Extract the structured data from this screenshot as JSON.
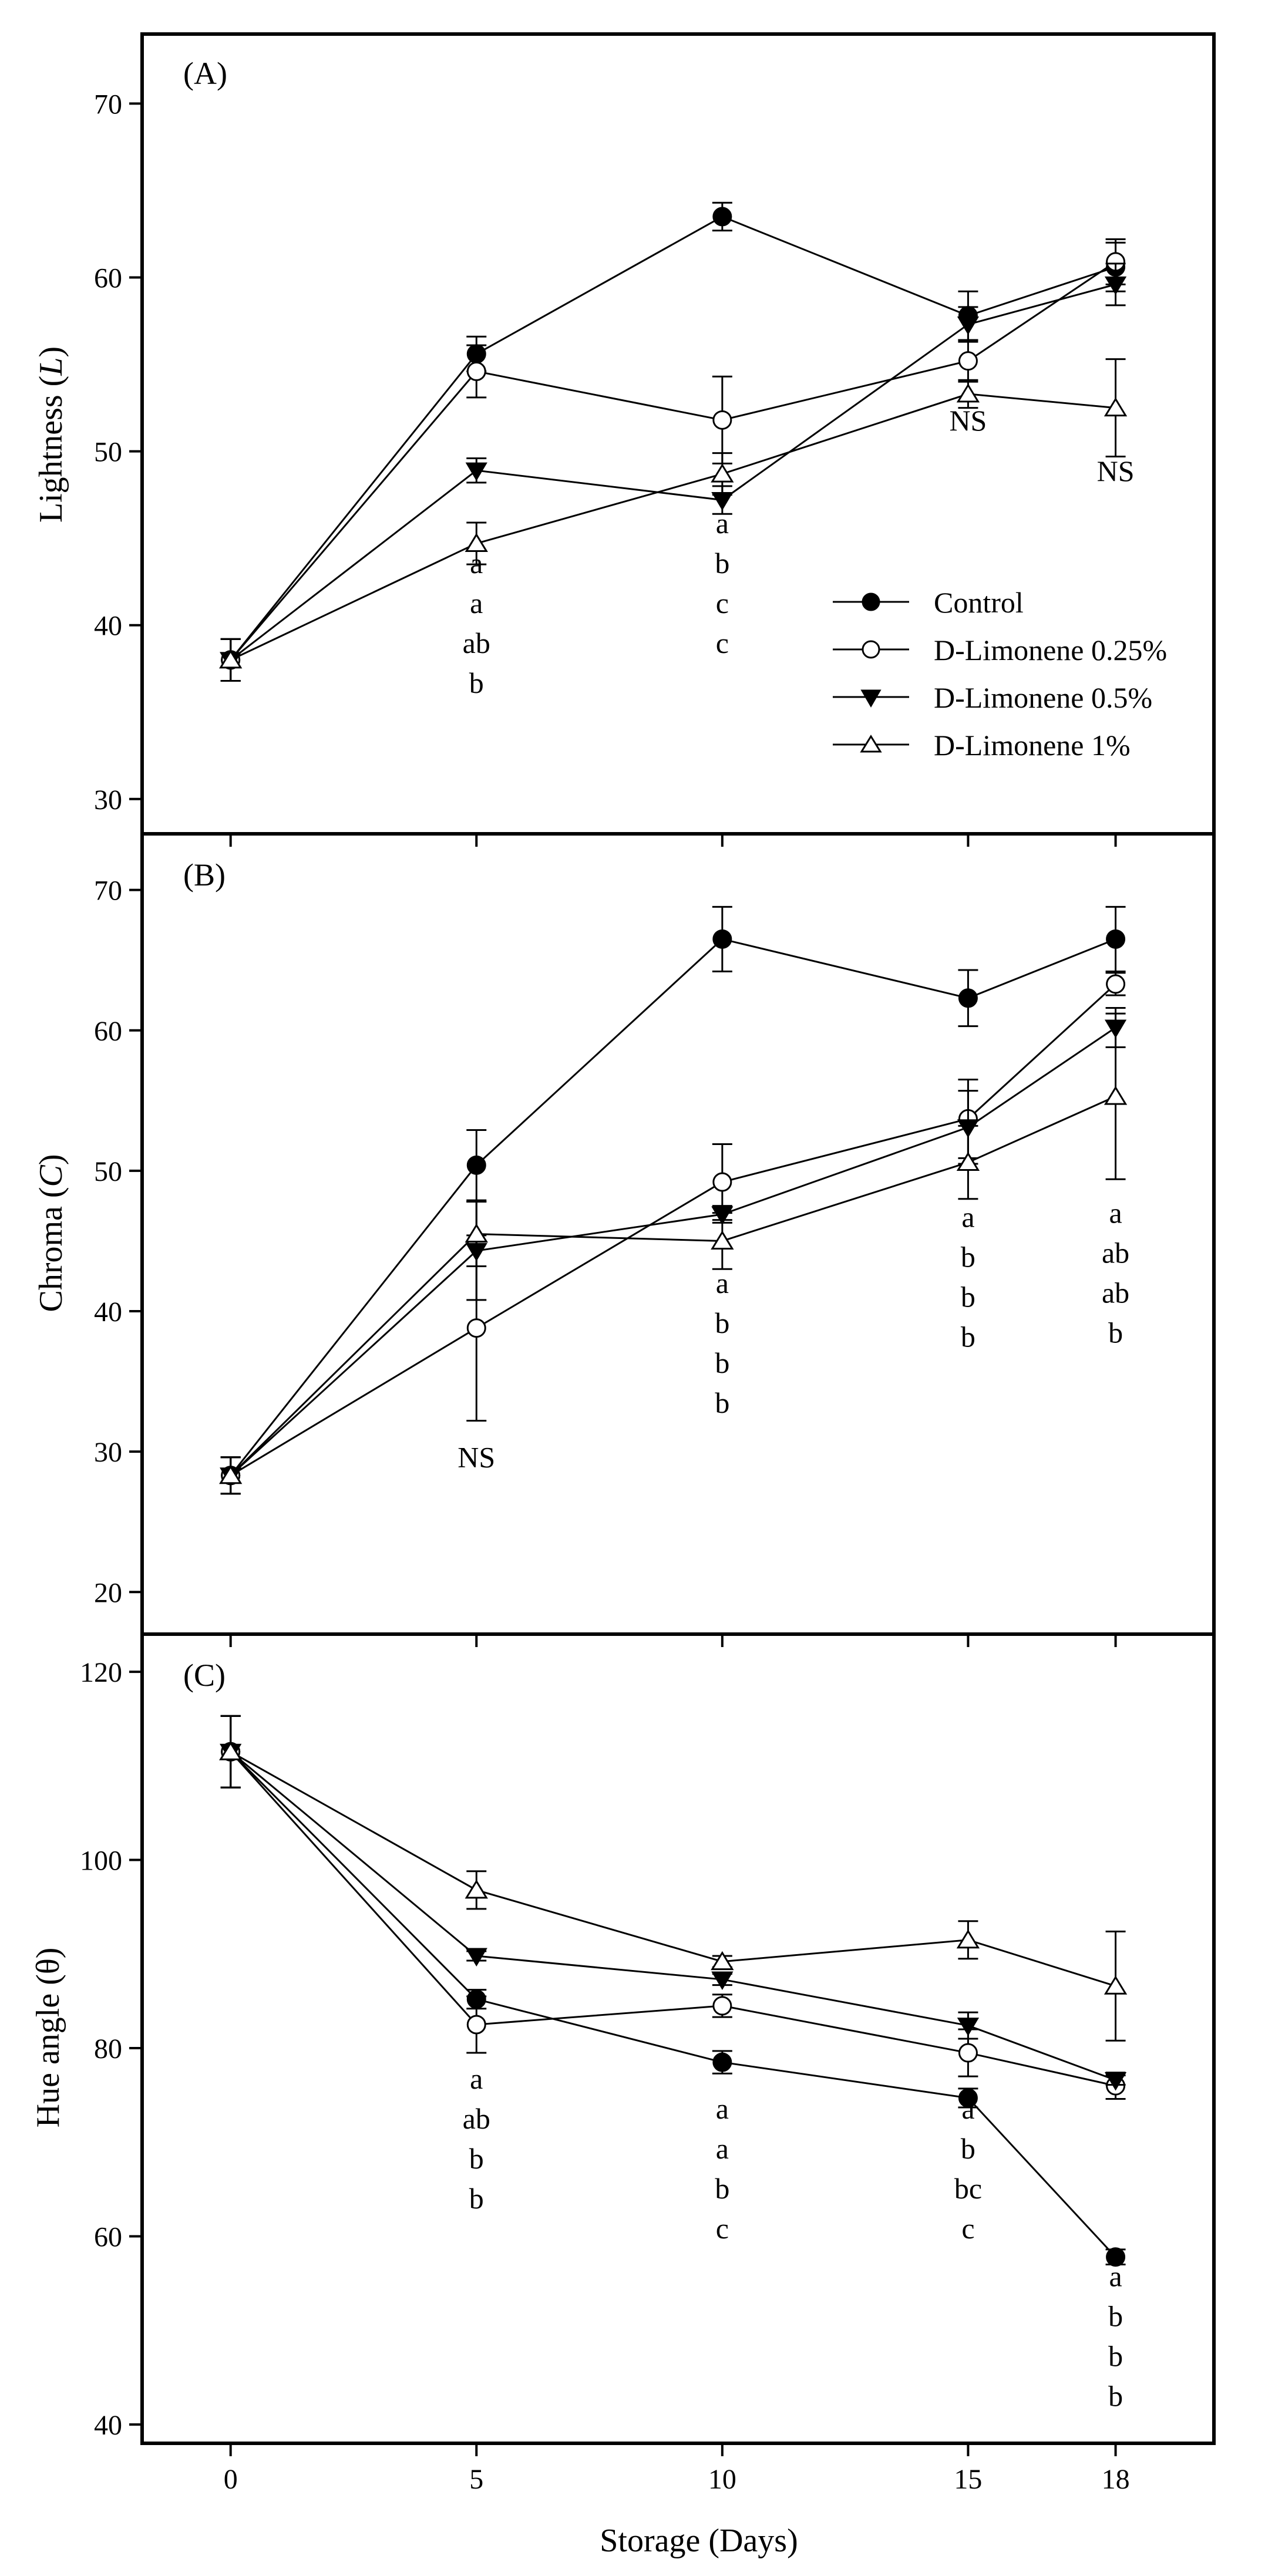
{
  "chart_data": [
    {
      "type": "line",
      "panel_label": "(A)",
      "ylabel": "Lightness (L)",
      "ylabel_main": "Lightness (",
      "ylabel_var": "L",
      "ylabel_end": ")",
      "ylim": [
        28,
        74
      ],
      "yticks": [
        30,
        40,
        50,
        60,
        70
      ],
      "x": [
        0,
        5,
        10,
        15,
        18
      ],
      "series": [
        {
          "name": "Control",
          "marker": "filled-circle",
          "values": [
            38.0,
            55.6,
            63.5,
            57.8,
            60.6
          ],
          "errors": [
            1.2,
            1.0,
            0.8,
            1.4,
            1.4
          ]
        },
        {
          "name": "D-Limonene 0.25%",
          "marker": "open-circle",
          "values": [
            38.0,
            54.6,
            51.8,
            55.2,
            60.9
          ],
          "errors": [
            1.2,
            1.5,
            2.5,
            1.2,
            1.3
          ]
        },
        {
          "name": "D-Limonene 0.5%",
          "marker": "filled-triangle-down",
          "values": [
            38.0,
            48.9,
            47.2,
            57.3,
            59.6
          ],
          "errors": [
            1.2,
            0.7,
            0.8,
            1.0,
            1.2
          ]
        },
        {
          "name": "D-Limonene 1%",
          "marker": "open-triangle-up",
          "values": [
            38.0,
            44.7,
            48.7,
            53.3,
            52.5
          ],
          "errors": [
            1.2,
            1.2,
            1.2,
            0.8,
            2.8
          ]
        }
      ],
      "annotations": [
        {
          "x": 5,
          "lines": [
            "a",
            "a",
            "ab",
            "b"
          ],
          "start": 43.0
        },
        {
          "x": 10,
          "lines": [
            "a",
            "b",
            "c",
            "c"
          ],
          "start": 45.3
        },
        {
          "x": 15,
          "lines": [
            "NS"
          ],
          "start": 51.2
        },
        {
          "x": 18,
          "lines": [
            "NS"
          ],
          "start": 48.3
        }
      ],
      "legend": {
        "entries": [
          "Control",
          "D-Limonene 0.25%",
          "D-Limonene 0.5%",
          "D-Limonene 1%"
        ],
        "placement": "lower-right"
      }
    },
    {
      "type": "line",
      "panel_label": "(B)",
      "ylabel": "Chroma (C)",
      "ylabel_main": "Chroma (",
      "ylabel_var": "C",
      "ylabel_end": ")",
      "ylim": [
        17,
        74
      ],
      "yticks": [
        20,
        30,
        40,
        50,
        60,
        70
      ],
      "x": [
        0,
        5,
        10,
        15,
        18
      ],
      "series": [
        {
          "name": "Control",
          "marker": "filled-circle",
          "values": [
            28.3,
            50.4,
            66.5,
            62.3,
            66.5
          ],
          "errors": [
            1.3,
            2.5,
            2.3,
            2.0,
            2.3
          ]
        },
        {
          "name": "D-Limonene 0.25%",
          "marker": "open-circle",
          "values": [
            28.3,
            38.8,
            49.2,
            53.7,
            63.3
          ],
          "errors": [
            1.3,
            6.6,
            2.7,
            2.8,
            0.8
          ]
        },
        {
          "name": "D-Limonene 0.5%",
          "marker": "filled-triangle-down",
          "values": [
            28.3,
            44.3,
            46.9,
            53.1,
            60.2
          ],
          "errors": [
            1.3,
            3.5,
            0.6,
            2.6,
            1.4
          ]
        },
        {
          "name": "D-Limonene 1%",
          "marker": "open-triangle-up",
          "values": [
            28.3,
            45.5,
            45.0,
            50.6,
            55.3
          ],
          "errors": [
            1.3,
            2.3,
            2.0,
            2.6,
            5.9
          ]
        }
      ],
      "annotations": [
        {
          "x": 5,
          "lines": [
            "NS"
          ],
          "start": 28.9
        },
        {
          "x": 10,
          "lines": [
            "a",
            "b",
            "b",
            "b"
          ],
          "start": 41.3
        },
        {
          "x": 15,
          "lines": [
            "a",
            "b",
            "b",
            "b"
          ],
          "start": 46.0
        },
        {
          "x": 18,
          "lines": [
            "a",
            "ab",
            "ab",
            "b"
          ],
          "start": 46.3
        }
      ]
    },
    {
      "type": "line",
      "panel_label": "(C)",
      "ylabel": "Hue angle (θ)",
      "ylim": [
        38,
        124
      ],
      "yticks": [
        40,
        60,
        80,
        100,
        120
      ],
      "x": [
        0,
        5,
        10,
        15,
        18
      ],
      "series": [
        {
          "name": "Control",
          "marker": "filled-circle",
          "values": [
            111.5,
            85.2,
            78.5,
            74.7,
            57.8
          ],
          "errors": [
            3.8,
            1.0,
            1.2,
            1.0,
            0.8
          ]
        },
        {
          "name": "D-Limonene 0.25%",
          "marker": "open-circle",
          "values": [
            111.5,
            82.5,
            84.5,
            79.5,
            76.0
          ],
          "errors": [
            3.8,
            3.0,
            1.2,
            2.5,
            1.4
          ]
        },
        {
          "name": "D-Limonene 0.5%",
          "marker": "filled-triangle-down",
          "values": [
            111.5,
            89.8,
            87.3,
            82.4,
            76.6
          ],
          "errors": [
            3.8,
            0.5,
            0.6,
            1.4,
            0.5
          ]
        },
        {
          "name": "D-Limonene 1%",
          "marker": "open-triangle-up",
          "values": [
            111.5,
            96.8,
            89.2,
            91.5,
            86.6
          ],
          "errors": [
            3.8,
            2.0,
            0.6,
            2.0,
            5.8
          ]
        }
      ],
      "annotations": [
        {
          "x": 5,
          "lines": [
            "a",
            "ab",
            "b",
            "b"
          ],
          "start": 75.7
        },
        {
          "x": 10,
          "lines": [
            "a",
            "a",
            "b",
            "c"
          ],
          "start": 72.5
        },
        {
          "x": 15,
          "lines": [
            "a",
            "b",
            "bc",
            "c"
          ],
          "start": 72.5
        },
        {
          "x": 18,
          "lines": [
            "a",
            "b",
            "b",
            "b"
          ],
          "start": 54.7
        }
      ]
    }
  ],
  "xaxis": {
    "title": "Storage (Days)",
    "ticks": [
      0,
      5,
      10,
      15,
      18
    ],
    "xlim": [
      -1.8,
      20.0
    ]
  }
}
